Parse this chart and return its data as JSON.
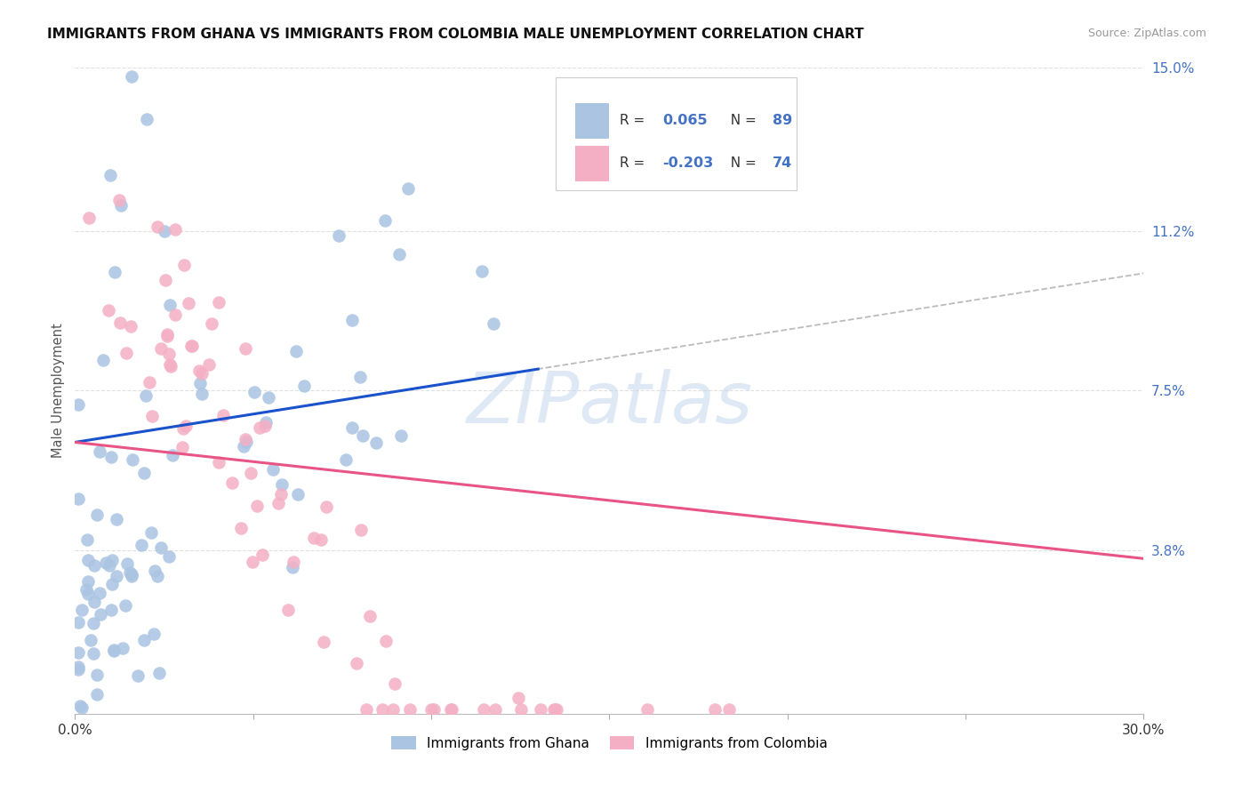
{
  "title": "IMMIGRANTS FROM GHANA VS IMMIGRANTS FROM COLOMBIA MALE UNEMPLOYMENT CORRELATION CHART",
  "source": "Source: ZipAtlas.com",
  "ylabel": "Male Unemployment",
  "xlim": [
    0.0,
    0.3
  ],
  "ylim": [
    0.0,
    0.15
  ],
  "yticks": [
    0.038,
    0.075,
    0.112,
    0.15
  ],
  "ytick_labels": [
    "3.8%",
    "7.5%",
    "11.2%",
    "15.0%"
  ],
  "xticks": [
    0.0,
    0.05,
    0.1,
    0.15,
    0.2,
    0.25,
    0.3
  ],
  "xtick_labels": [
    "0.0%",
    "",
    "",
    "",
    "",
    "",
    "30.0%"
  ],
  "ghana_color": "#aac4e2",
  "colombia_color": "#f4afc4",
  "ghana_line_color": "#1a52cc",
  "colombia_line_color": "#e85585",
  "ghana_R": 0.065,
  "ghana_N": 89,
  "colombia_R": -0.203,
  "colombia_N": 74,
  "watermark": "ZIPatlas",
  "background_color": "#ffffff",
  "grid_color": "#e0e0e0",
  "title_fontsize": 11,
  "axis_label_color": "#4472c4",
  "ghana_seed": 7,
  "colombia_seed": 13
}
